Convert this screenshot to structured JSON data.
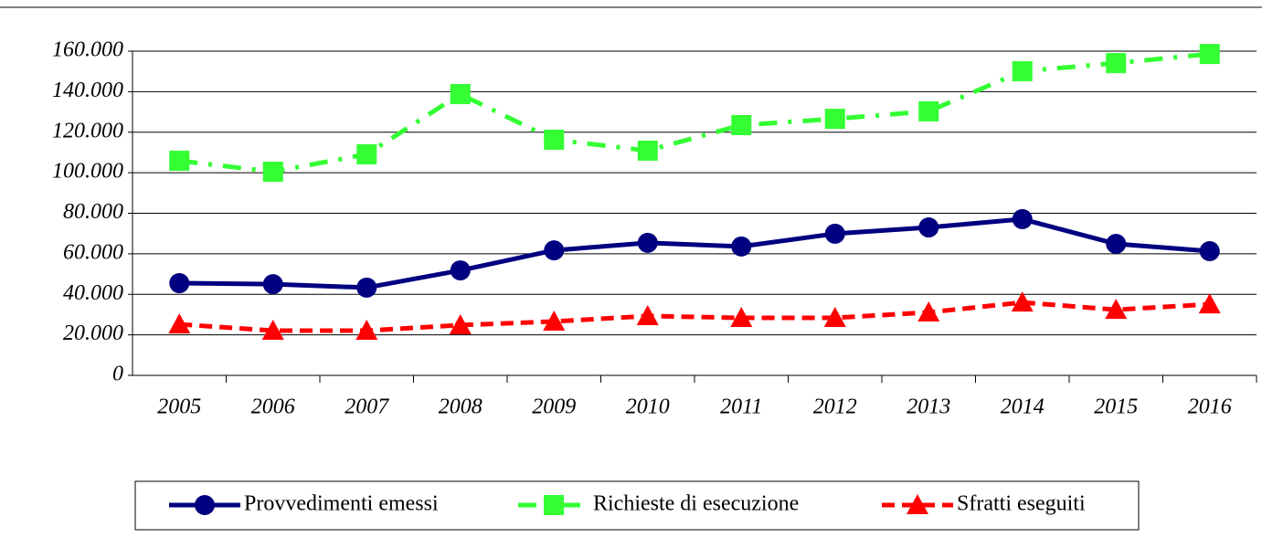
{
  "chart_data": {
    "type": "line",
    "categories": [
      "2005",
      "2006",
      "2007",
      "2008",
      "2009",
      "2010",
      "2011",
      "2012",
      "2013",
      "2014",
      "2015",
      "2016"
    ],
    "series": [
      {
        "name": "Provvedimenti emessi",
        "color": "#000080",
        "marker": "circle",
        "dash": "solid",
        "values": [
          45500,
          45000,
          43300,
          51800,
          61700,
          65400,
          63600,
          69900,
          73000,
          77100,
          64900,
          61300
        ]
      },
      {
        "name": "Richieste di esecuzione",
        "color": "#33ff33",
        "marker": "square",
        "dash": "dashdot",
        "values": [
          105900,
          100500,
          109100,
          138800,
          116300,
          110900,
          123500,
          126600,
          130300,
          150100,
          154100,
          158600
        ]
      },
      {
        "name": "Sfratti eseguiti",
        "color": "#ff0000",
        "marker": "triangle",
        "dash": "dashed",
        "values": [
          25200,
          22100,
          22100,
          24800,
          26600,
          29300,
          28400,
          28400,
          31100,
          36000,
          32400,
          35100
        ]
      }
    ],
    "ylim": [
      0,
      160000
    ],
    "yticks": [
      0,
      {
        "value": 20000,
        "label": "20.000"
      },
      {
        "value": 40000,
        "label": "40.000"
      },
      {
        "value": 60000,
        "label": "60.000"
      },
      {
        "value": 80000,
        "label": "80.000"
      },
      {
        "value": 100000,
        "label": "100.000"
      },
      {
        "value": 120000,
        "label": "120.000"
      },
      {
        "value": 140000,
        "label": "140.000"
      },
      {
        "value": 160000,
        "label": "160.000"
      }
    ],
    "grid": true,
    "legend": "bottom"
  }
}
